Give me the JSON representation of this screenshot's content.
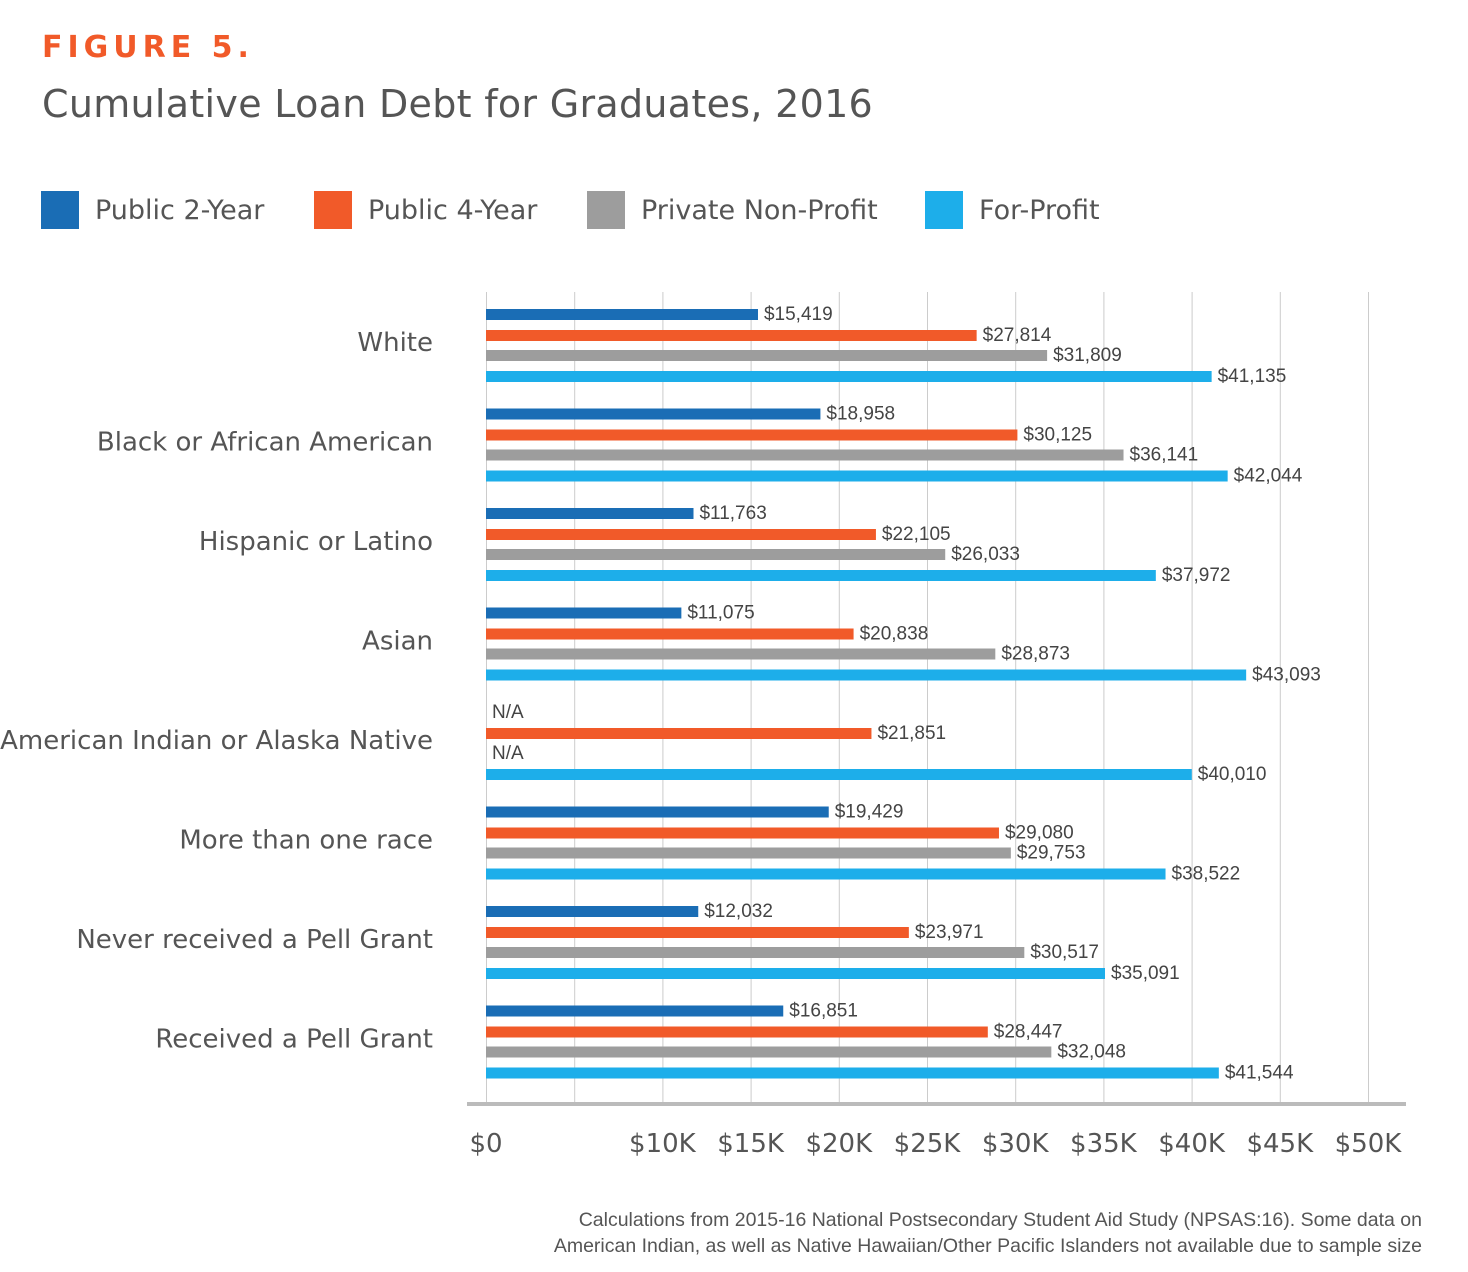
{
  "figure_label": "FIGURE 5.",
  "note": {
    "line1": "Calculations from 2015-16 National Postsecondary Student Aid Study (NPSAS:16). Some data on",
    "line2": "American Indian, as well as Native Hawaiian/Other Pacific Islanders not available due to sample size"
  },
  "colors": {
    "accent": "#f15a29",
    "text": "#555555",
    "grid": "#cccccc",
    "axis": "#bbbbbb"
  },
  "chart_data": {
    "type": "bar",
    "orientation": "horizontal",
    "title": "Cumulative Loan Debt for Graduates, 2016",
    "xlabel": "",
    "ylabel": "",
    "xlim": [
      0,
      50000
    ],
    "grid": true,
    "legend_position": "top",
    "x_ticks": [
      0,
      5000,
      10000,
      15000,
      20000,
      25000,
      30000,
      35000,
      40000,
      45000,
      50000
    ],
    "x_tick_labels": [
      "$0",
      "$10K",
      "$15K",
      "$20K",
      "$25K",
      "$30K",
      "$35K",
      "$40K",
      "$45K",
      "$50K"
    ],
    "x_tick_label_values": [
      0,
      10000,
      15000,
      20000,
      25000,
      30000,
      35000,
      40000,
      45000,
      50000
    ],
    "categories": [
      "White",
      "Black or African American",
      "Hispanic or Latino",
      "Asian",
      "American Indian or Alaska Native",
      "More than one race",
      "Never received a Pell Grant",
      "Received a Pell Grant"
    ],
    "series": [
      {
        "name": "Public 2-Year",
        "color": "#1a6db5",
        "values": [
          15419,
          18958,
          11763,
          11075,
          null,
          19429,
          12032,
          16851
        ],
        "labels": [
          "$15,419",
          "$18,958",
          "$11,763",
          "$11,075",
          "N/A",
          "$19,429",
          "$12,032",
          "$16,851"
        ]
      },
      {
        "name": "Public 4-Year",
        "color": "#f15a29",
        "values": [
          27814,
          30125,
          22105,
          20838,
          21851,
          29080,
          23971,
          28447
        ],
        "labels": [
          "$27,814",
          "$30,125",
          "$22,105",
          "$20,838",
          "$21,851",
          "$29,080",
          "$23,971",
          "$28,447"
        ]
      },
      {
        "name": "Private Non-Profit",
        "color": "#9d9d9d",
        "values": [
          31809,
          36141,
          26033,
          28873,
          null,
          29753,
          30517,
          32048
        ],
        "labels": [
          "$31,809",
          "$36,141",
          "$26,033",
          "$28,873",
          "N/A",
          "$29,753",
          "$30,517",
          "$32,048"
        ]
      },
      {
        "name": "For-Profit",
        "color": "#1daeea",
        "values": [
          41135,
          42044,
          37972,
          43093,
          40010,
          38522,
          35091,
          41544
        ],
        "labels": [
          "$41,135",
          "$42,044",
          "$37,972",
          "$43,093",
          "$40,010",
          "$38,522",
          "$35,091",
          "$41,544"
        ]
      }
    ]
  }
}
